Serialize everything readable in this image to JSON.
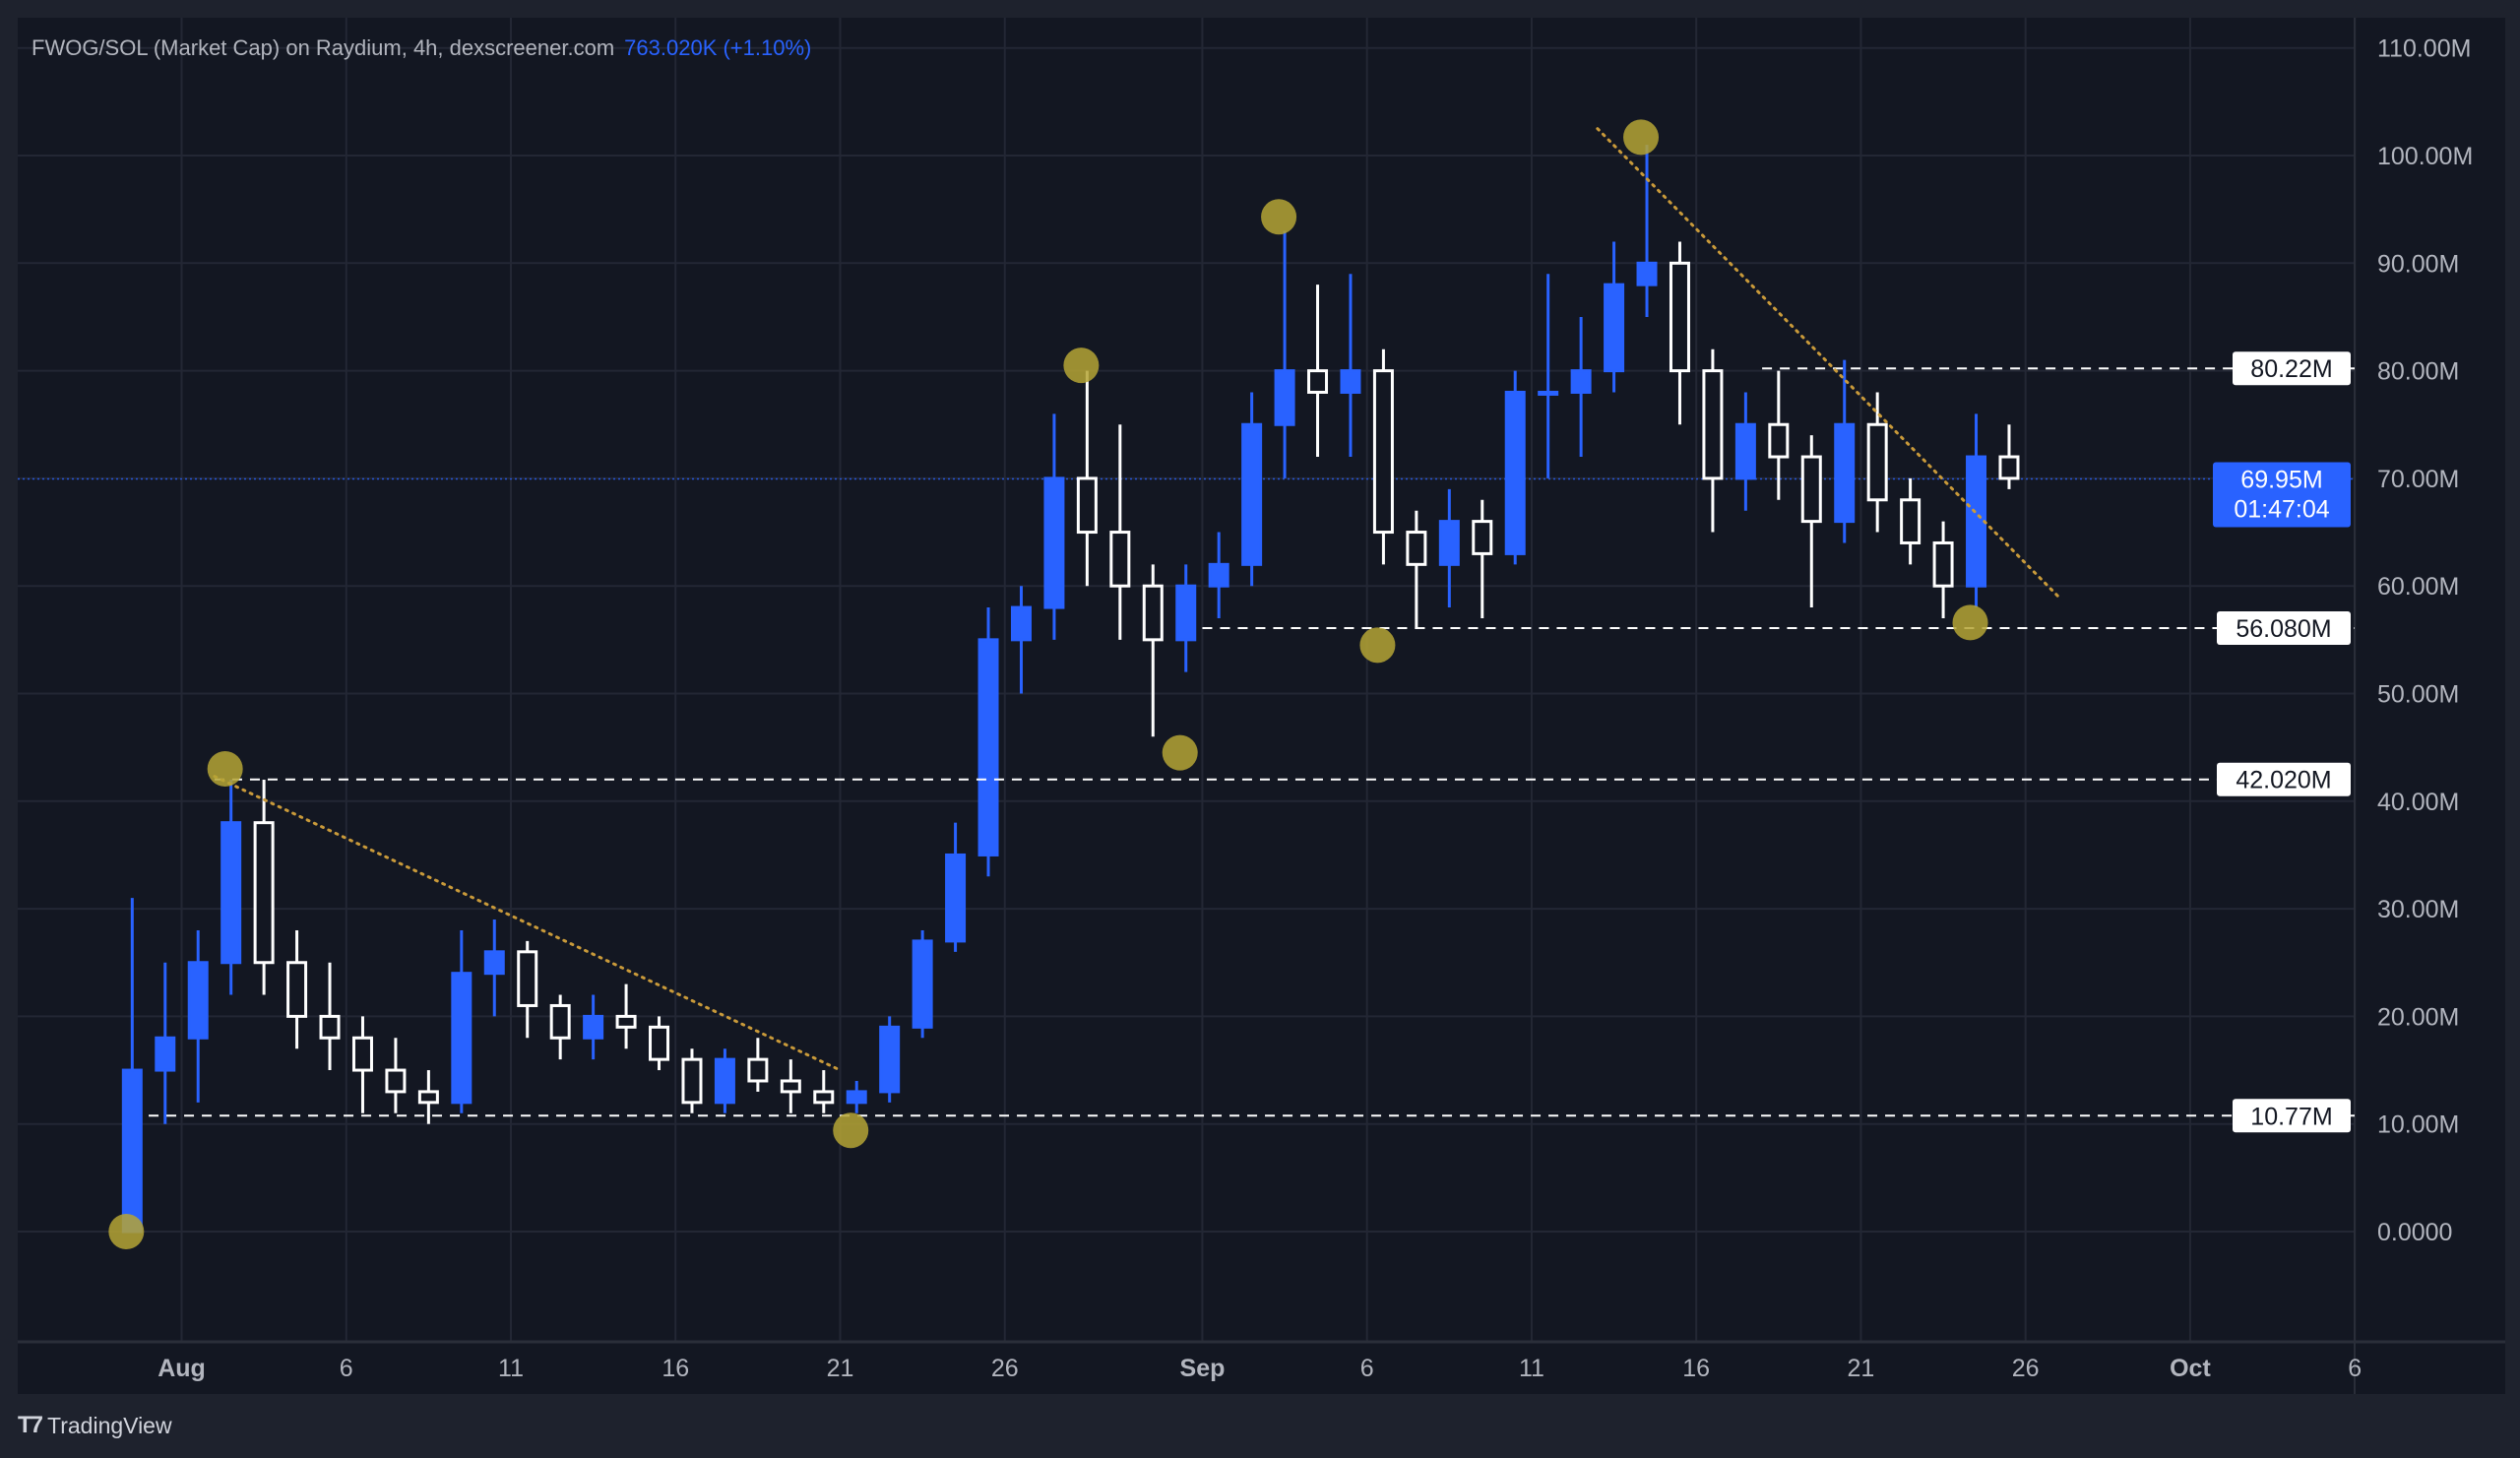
{
  "header": {
    "symbol_title": "FWOG/SOL (Market Cap) on Raydium, 4h, dexscreener.com",
    "last_value": "763.020K (+1.10%)"
  },
  "footer": {
    "brand": "TradingView",
    "brand_icon": "tradingview-logo-icon"
  },
  "colors": {
    "background": "#131722",
    "outer": "#1e222d",
    "grid": "#232734",
    "up_candle": "#2962ff",
    "down_candle": "#ffffff",
    "marker": "#b5a535",
    "trendline": "#c99a3a",
    "level_line": "#ffffff",
    "price_badge": "#2962ff"
  },
  "chart_data": {
    "type": "candlestick",
    "interval": "4h",
    "title": "FWOG/SOL (Market Cap) on Raydium, 4h, dexscreener.com",
    "ylim": [
      -10,
      112
    ],
    "y_unit": "M",
    "y_ticks": [
      {
        "value": 0,
        "label": "0.0000"
      },
      {
        "value": 10,
        "label": "10.00M"
      },
      {
        "value": 20,
        "label": "20.00M"
      },
      {
        "value": 30,
        "label": "30.00M"
      },
      {
        "value": 40,
        "label": "40.00M"
      },
      {
        "value": 50,
        "label": "50.00M"
      },
      {
        "value": 60,
        "label": "60.00M"
      },
      {
        "value": 70,
        "label": "70.00M"
      },
      {
        "value": 80,
        "label": "80.00M"
      },
      {
        "value": 90,
        "label": "90.00M"
      },
      {
        "value": 100,
        "label": "100.00M"
      },
      {
        "value": 110,
        "label": "110.00M"
      }
    ],
    "x_ticks": [
      {
        "date": "08-01",
        "label": "Aug",
        "bold": true
      },
      {
        "date": "08-06",
        "label": "6"
      },
      {
        "date": "08-11",
        "label": "11"
      },
      {
        "date": "08-16",
        "label": "16"
      },
      {
        "date": "08-21",
        "label": "21"
      },
      {
        "date": "08-26",
        "label": "26"
      },
      {
        "date": "09-01",
        "label": "Sep",
        "bold": true
      },
      {
        "date": "09-06",
        "label": "6"
      },
      {
        "date": "09-11",
        "label": "11"
      },
      {
        "date": "09-16",
        "label": "16"
      },
      {
        "date": "09-21",
        "label": "21"
      },
      {
        "date": "09-26",
        "label": "26"
      },
      {
        "date": "10-01",
        "label": "Oct",
        "bold": true
      },
      {
        "date": "10-06",
        "label": "6"
      }
    ],
    "candles": [
      [
        "07-30",
        0,
        31,
        0,
        15
      ],
      [
        "07-31",
        15,
        25,
        10,
        18
      ],
      [
        "08-01",
        18,
        28,
        12,
        25
      ],
      [
        "08-02",
        25,
        42,
        22,
        38
      ],
      [
        "08-03",
        38,
        42,
        22,
        25
      ],
      [
        "08-04",
        25,
        28,
        17,
        20
      ],
      [
        "08-05",
        20,
        25,
        15,
        18
      ],
      [
        "08-06",
        18,
        20,
        11,
        15
      ],
      [
        "08-07",
        15,
        18,
        11,
        13
      ],
      [
        "08-08",
        13,
        15,
        10,
        12
      ],
      [
        "08-09",
        12,
        28,
        11,
        24
      ],
      [
        "08-10",
        24,
        29,
        20,
        26
      ],
      [
        "08-11",
        26,
        27,
        18,
        21
      ],
      [
        "08-12",
        21,
        22,
        16,
        18
      ],
      [
        "08-13",
        18,
        22,
        16,
        20
      ],
      [
        "08-14",
        20,
        23,
        17,
        19
      ],
      [
        "08-15",
        19,
        20,
        15,
        16
      ],
      [
        "08-16",
        16,
        17,
        11,
        12
      ],
      [
        "08-17",
        12,
        17,
        11,
        16
      ],
      [
        "08-18",
        16,
        18,
        13,
        14
      ],
      [
        "08-19",
        14,
        16,
        11,
        13
      ],
      [
        "08-20",
        13,
        15,
        11,
        12
      ],
      [
        "08-21",
        12,
        14,
        11,
        13
      ],
      [
        "08-22",
        13,
        20,
        12,
        19
      ],
      [
        "08-23",
        19,
        28,
        18,
        27
      ],
      [
        "08-24",
        27,
        38,
        26,
        35
      ],
      [
        "08-25",
        35,
        58,
        33,
        55
      ],
      [
        "08-26",
        55,
        60,
        50,
        58
      ],
      [
        "08-27",
        58,
        76,
        55,
        70
      ],
      [
        "08-28",
        70,
        80,
        60,
        65
      ],
      [
        "08-29",
        65,
        75,
        55,
        60
      ],
      [
        "08-30",
        60,
        62,
        46,
        55
      ],
      [
        "08-31",
        55,
        62,
        52,
        60
      ],
      [
        "09-01",
        60,
        65,
        57,
        62
      ],
      [
        "09-02",
        62,
        78,
        60,
        75
      ],
      [
        "09-03",
        75,
        93,
        70,
        80
      ],
      [
        "09-04",
        80,
        88,
        72,
        78
      ],
      [
        "09-05",
        78,
        89,
        72,
        80
      ],
      [
        "09-06",
        80,
        82,
        62,
        65
      ],
      [
        "09-07",
        65,
        67,
        56,
        62
      ],
      [
        "09-08",
        62,
        69,
        58,
        66
      ],
      [
        "09-09",
        66,
        68,
        57,
        63
      ],
      [
        "09-10",
        63,
        80,
        62,
        78
      ],
      [
        "09-11",
        78,
        89,
        70,
        78
      ],
      [
        "09-12",
        78,
        85,
        72,
        80
      ],
      [
        "09-13",
        80,
        92,
        78,
        88
      ],
      [
        "09-14",
        88,
        101,
        85,
        90
      ],
      [
        "09-15",
        90,
        92,
        75,
        80
      ],
      [
        "09-16",
        80,
        82,
        65,
        70
      ],
      [
        "09-17",
        70,
        78,
        67,
        75
      ],
      [
        "09-18",
        75,
        80,
        68,
        72
      ],
      [
        "09-19",
        72,
        74,
        58,
        66
      ],
      [
        "09-20",
        66,
        81,
        64,
        75
      ],
      [
        "09-21",
        75,
        78,
        65,
        68
      ],
      [
        "09-22",
        68,
        70,
        62,
        64
      ],
      [
        "09-23",
        64,
        66,
        57,
        60
      ],
      [
        "09-24",
        60,
        76,
        58,
        72
      ],
      [
        "09-25",
        72,
        75,
        69,
        70
      ]
    ],
    "candle_fields": [
      "date",
      "open",
      "high",
      "low",
      "close"
    ],
    "levels": [
      {
        "value": 80.22,
        "label": "80.22M",
        "from": "09-18"
      },
      {
        "value": 56.08,
        "label": "56.080M",
        "from": "09-01"
      },
      {
        "value": 42.02,
        "label": "42.020M",
        "from": "08-02"
      },
      {
        "value": 10.77,
        "label": "10.77M",
        "from": "07-31"
      }
    ],
    "current_price": {
      "value": 69.95,
      "label": "69.95M",
      "countdown": "01:47:04"
    },
    "markers": [
      {
        "date": "07-30",
        "value": 0
      },
      {
        "date": "08-02",
        "value": 43
      },
      {
        "date": "08-21",
        "value": 9.4
      },
      {
        "date": "08-28",
        "value": 80.5
      },
      {
        "date": "08-31",
        "value": 44.5
      },
      {
        "date": "09-03",
        "value": 94.3
      },
      {
        "date": "09-06",
        "value": 54.5
      },
      {
        "date": "09-14",
        "value": 101.7
      },
      {
        "date": "09-24",
        "value": 56.6
      }
    ],
    "trendlines": [
      {
        "from": [
          "08-02",
          42.3
        ],
        "to": [
          "08-21",
          15
        ]
      },
      {
        "from": [
          "09-13",
          102.5
        ],
        "to": [
          "09-27",
          59
        ]
      }
    ]
  }
}
